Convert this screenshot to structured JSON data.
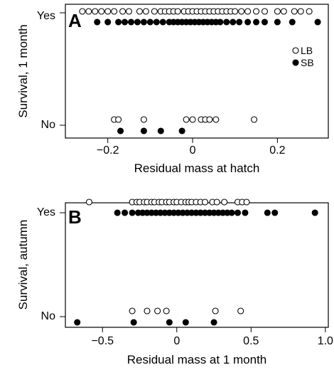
{
  "chart_data": [
    {
      "type": "scatter",
      "panel": "A",
      "xlabel": "Residual mass at hatch",
      "ylabel": "Survival, 1 month",
      "xlim": [
        -0.3,
        0.32
      ],
      "xticks": [
        -0.2,
        0,
        0.2
      ],
      "xtick_labels": [
        "−0.2",
        "0",
        "0.2"
      ],
      "ytick_labels": [
        "Yes",
        "No"
      ],
      "legend": {
        "position": "right",
        "entries": [
          {
            "label": "LB",
            "marker": "open-circle"
          },
          {
            "label": "SB",
            "marker": "filled-circle"
          }
        ]
      },
      "series": [
        {
          "name": "LB",
          "marker": "open-circle",
          "points": [
            {
              "x": -0.26,
              "y": "Yes"
            },
            {
              "x": -0.245,
              "y": "Yes"
            },
            {
              "x": -0.23,
              "y": "Yes"
            },
            {
              "x": -0.215,
              "y": "Yes"
            },
            {
              "x": -0.2,
              "y": "Yes"
            },
            {
              "x": -0.185,
              "y": "Yes"
            },
            {
              "x": -0.165,
              "y": "Yes"
            },
            {
              "x": -0.15,
              "y": "Yes"
            },
            {
              "x": -0.125,
              "y": "Yes"
            },
            {
              "x": -0.11,
              "y": "Yes"
            },
            {
              "x": -0.09,
              "y": "Yes"
            },
            {
              "x": -0.075,
              "y": "Yes"
            },
            {
              "x": -0.065,
              "y": "Yes"
            },
            {
              "x": -0.055,
              "y": "Yes"
            },
            {
              "x": -0.045,
              "y": "Yes"
            },
            {
              "x": -0.035,
              "y": "Yes"
            },
            {
              "x": -0.02,
              "y": "Yes"
            },
            {
              "x": -0.01,
              "y": "Yes"
            },
            {
              "x": 0.0,
              "y": "Yes"
            },
            {
              "x": 0.01,
              "y": "Yes"
            },
            {
              "x": 0.02,
              "y": "Yes"
            },
            {
              "x": 0.03,
              "y": "Yes"
            },
            {
              "x": 0.04,
              "y": "Yes"
            },
            {
              "x": 0.05,
              "y": "Yes"
            },
            {
              "x": 0.06,
              "y": "Yes"
            },
            {
              "x": 0.07,
              "y": "Yes"
            },
            {
              "x": 0.08,
              "y": "Yes"
            },
            {
              "x": 0.09,
              "y": "Yes"
            },
            {
              "x": 0.1,
              "y": "Yes"
            },
            {
              "x": 0.115,
              "y": "Yes"
            },
            {
              "x": 0.13,
              "y": "Yes"
            },
            {
              "x": 0.15,
              "y": "Yes"
            },
            {
              "x": 0.17,
              "y": "Yes"
            },
            {
              "x": 0.2,
              "y": "Yes"
            },
            {
              "x": 0.215,
              "y": "Yes"
            },
            {
              "x": 0.24,
              "y": "Yes"
            },
            {
              "x": 0.255,
              "y": "Yes"
            },
            {
              "x": 0.275,
              "y": "Yes"
            },
            {
              "x": -0.185,
              "y": "No"
            },
            {
              "x": -0.175,
              "y": "No"
            },
            {
              "x": -0.115,
              "y": "No"
            },
            {
              "x": -0.015,
              "y": "No"
            },
            {
              "x": 0.0,
              "y": "No"
            },
            {
              "x": 0.02,
              "y": "No"
            },
            {
              "x": 0.03,
              "y": "No"
            },
            {
              "x": 0.04,
              "y": "No"
            },
            {
              "x": 0.055,
              "y": "No"
            },
            {
              "x": 0.145,
              "y": "No"
            }
          ]
        },
        {
          "name": "SB",
          "marker": "filled-circle",
          "points": [
            {
              "x": -0.225,
              "y": "Yes"
            },
            {
              "x": -0.2,
              "y": "Yes"
            },
            {
              "x": -0.175,
              "y": "Yes"
            },
            {
              "x": -0.16,
              "y": "Yes"
            },
            {
              "x": -0.145,
              "y": "Yes"
            },
            {
              "x": -0.13,
              "y": "Yes"
            },
            {
              "x": -0.115,
              "y": "Yes"
            },
            {
              "x": -0.1,
              "y": "Yes"
            },
            {
              "x": -0.085,
              "y": "Yes"
            },
            {
              "x": -0.07,
              "y": "Yes"
            },
            {
              "x": -0.055,
              "y": "Yes"
            },
            {
              "x": -0.045,
              "y": "Yes"
            },
            {
              "x": -0.035,
              "y": "Yes"
            },
            {
              "x": -0.025,
              "y": "Yes"
            },
            {
              "x": -0.015,
              "y": "Yes"
            },
            {
              "x": -0.005,
              "y": "Yes"
            },
            {
              "x": 0.005,
              "y": "Yes"
            },
            {
              "x": 0.015,
              "y": "Yes"
            },
            {
              "x": 0.025,
              "y": "Yes"
            },
            {
              "x": 0.035,
              "y": "Yes"
            },
            {
              "x": 0.045,
              "y": "Yes"
            },
            {
              "x": 0.055,
              "y": "Yes"
            },
            {
              "x": 0.065,
              "y": "Yes"
            },
            {
              "x": 0.08,
              "y": "Yes"
            },
            {
              "x": 0.095,
              "y": "Yes"
            },
            {
              "x": 0.11,
              "y": "Yes"
            },
            {
              "x": 0.13,
              "y": "Yes"
            },
            {
              "x": 0.15,
              "y": "Yes"
            },
            {
              "x": 0.17,
              "y": "Yes"
            },
            {
              "x": 0.2,
              "y": "Yes"
            },
            {
              "x": 0.235,
              "y": "Yes"
            },
            {
              "x": 0.295,
              "y": "Yes"
            },
            {
              "x": -0.17,
              "y": "No"
            },
            {
              "x": -0.115,
              "y": "No"
            },
            {
              "x": -0.075,
              "y": "No"
            },
            {
              "x": -0.025,
              "y": "No"
            }
          ]
        }
      ]
    },
    {
      "type": "scatter",
      "panel": "B",
      "xlabel": "Residual mass at 1 month",
      "ylabel": "Survival, autumn",
      "xlim": [
        -0.75,
        1.02
      ],
      "xticks": [
        -0.5,
        0,
        0.5,
        1.0
      ],
      "xtick_labels": [
        "−0.5",
        "0",
        "0.5",
        "1.0"
      ],
      "ytick_labels": [
        "Yes",
        "No"
      ],
      "series": [
        {
          "name": "LB",
          "marker": "open-circle",
          "points": [
            {
              "x": -0.59,
              "y": "Yes"
            },
            {
              "x": -0.3,
              "y": "Yes"
            },
            {
              "x": -0.27,
              "y": "Yes"
            },
            {
              "x": -0.25,
              "y": "Yes"
            },
            {
              "x": -0.22,
              "y": "Yes"
            },
            {
              "x": -0.2,
              "y": "Yes"
            },
            {
              "x": -0.17,
              "y": "Yes"
            },
            {
              "x": -0.15,
              "y": "Yes"
            },
            {
              "x": -0.12,
              "y": "Yes"
            },
            {
              "x": -0.1,
              "y": "Yes"
            },
            {
              "x": -0.07,
              "y": "Yes"
            },
            {
              "x": -0.05,
              "y": "Yes"
            },
            {
              "x": -0.02,
              "y": "Yes"
            },
            {
              "x": 0.0,
              "y": "Yes"
            },
            {
              "x": 0.03,
              "y": "Yes"
            },
            {
              "x": 0.06,
              "y": "Yes"
            },
            {
              "x": 0.08,
              "y": "Yes"
            },
            {
              "x": 0.1,
              "y": "Yes"
            },
            {
              "x": 0.13,
              "y": "Yes"
            },
            {
              "x": 0.16,
              "y": "Yes"
            },
            {
              "x": 0.19,
              "y": "Yes"
            },
            {
              "x": 0.24,
              "y": "Yes"
            },
            {
              "x": 0.27,
              "y": "Yes"
            },
            {
              "x": 0.32,
              "y": "Yes"
            },
            {
              "x": 0.41,
              "y": "Yes"
            },
            {
              "x": 0.44,
              "y": "Yes"
            },
            {
              "x": 0.47,
              "y": "Yes"
            },
            {
              "x": -0.3,
              "y": "No"
            },
            {
              "x": -0.2,
              "y": "No"
            },
            {
              "x": -0.13,
              "y": "No"
            },
            {
              "x": -0.07,
              "y": "No"
            },
            {
              "x": 0.26,
              "y": "No"
            },
            {
              "x": 0.43,
              "y": "No"
            }
          ]
        },
        {
          "name": "SB",
          "marker": "filled-circle",
          "points": [
            {
              "x": -0.4,
              "y": "Yes"
            },
            {
              "x": -0.35,
              "y": "Yes"
            },
            {
              "x": -0.3,
              "y": "Yes"
            },
            {
              "x": -0.26,
              "y": "Yes"
            },
            {
              "x": -0.23,
              "y": "Yes"
            },
            {
              "x": -0.2,
              "y": "Yes"
            },
            {
              "x": -0.17,
              "y": "Yes"
            },
            {
              "x": -0.14,
              "y": "Yes"
            },
            {
              "x": -0.11,
              "y": "Yes"
            },
            {
              "x": -0.08,
              "y": "Yes"
            },
            {
              "x": -0.05,
              "y": "Yes"
            },
            {
              "x": -0.02,
              "y": "Yes"
            },
            {
              "x": 0.01,
              "y": "Yes"
            },
            {
              "x": 0.04,
              "y": "Yes"
            },
            {
              "x": 0.07,
              "y": "Yes"
            },
            {
              "x": 0.1,
              "y": "Yes"
            },
            {
              "x": 0.13,
              "y": "Yes"
            },
            {
              "x": 0.16,
              "y": "Yes"
            },
            {
              "x": 0.19,
              "y": "Yes"
            },
            {
              "x": 0.22,
              "y": "Yes"
            },
            {
              "x": 0.25,
              "y": "Yes"
            },
            {
              "x": 0.28,
              "y": "Yes"
            },
            {
              "x": 0.31,
              "y": "Yes"
            },
            {
              "x": 0.34,
              "y": "Yes"
            },
            {
              "x": 0.37,
              "y": "Yes"
            },
            {
              "x": 0.41,
              "y": "Yes"
            },
            {
              "x": 0.46,
              "y": "Yes"
            },
            {
              "x": 0.61,
              "y": "Yes"
            },
            {
              "x": 0.66,
              "y": "Yes"
            },
            {
              "x": 0.93,
              "y": "Yes"
            },
            {
              "x": -0.67,
              "y": "No"
            },
            {
              "x": -0.29,
              "y": "No"
            },
            {
              "x": -0.05,
              "y": "No"
            },
            {
              "x": 0.06,
              "y": "No"
            },
            {
              "x": 0.25,
              "y": "No"
            }
          ]
        }
      ]
    }
  ]
}
